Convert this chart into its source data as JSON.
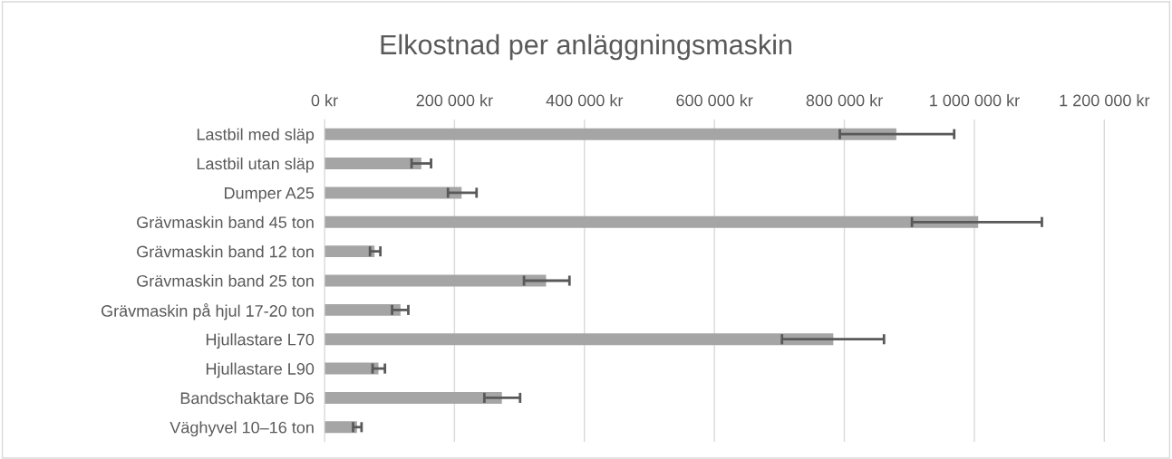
{
  "chart_data": {
    "type": "bar",
    "orientation": "horizontal",
    "title": "Elkostnad per anläggningsmaskin",
    "categories": [
      "Lastbil med släp",
      "Lastbil utan släp",
      "Dumper A25",
      "Grävmaskin band 45 ton",
      "Grävmaskin band 12 ton",
      "Grävmaskin band 25 ton",
      "Grävmaskin på hjul 17-20 ton",
      "Hjullastare L70",
      "Hjullastare L90",
      "Bandschaktare D6",
      "Väghyvel 10–16 ton"
    ],
    "values": [
      880000,
      149000,
      211000,
      1006000,
      77000,
      341000,
      117000,
      783000,
      83000,
      273000,
      50000
    ],
    "errors": [
      [
        793000,
        969000
      ],
      [
        134000,
        164000
      ],
      [
        190000,
        234000
      ],
      [
        904000,
        1104000
      ],
      [
        70000,
        86000
      ],
      [
        307000,
        377000
      ],
      [
        104000,
        129000
      ],
      [
        704000,
        861000
      ],
      [
        74000,
        93000
      ],
      [
        246000,
        301000
      ],
      [
        44000,
        57000
      ]
    ],
    "color": "#a5a5a5",
    "xlim": [
      0,
      1300000
    ],
    "xticks": [
      {
        "value": 0,
        "label": "0 kr"
      },
      {
        "value": 200000,
        "label": "200 000 kr"
      },
      {
        "value": 400000,
        "label": "400 000 kr"
      },
      {
        "value": 600000,
        "label": "600 000 kr"
      },
      {
        "value": 800000,
        "label": "800 000 kr"
      },
      {
        "value": 1000000,
        "label": "1 000 000 kr"
      },
      {
        "value": 1200000,
        "label": "1 200 000 kr"
      }
    ],
    "grid": "x",
    "legend": false
  }
}
